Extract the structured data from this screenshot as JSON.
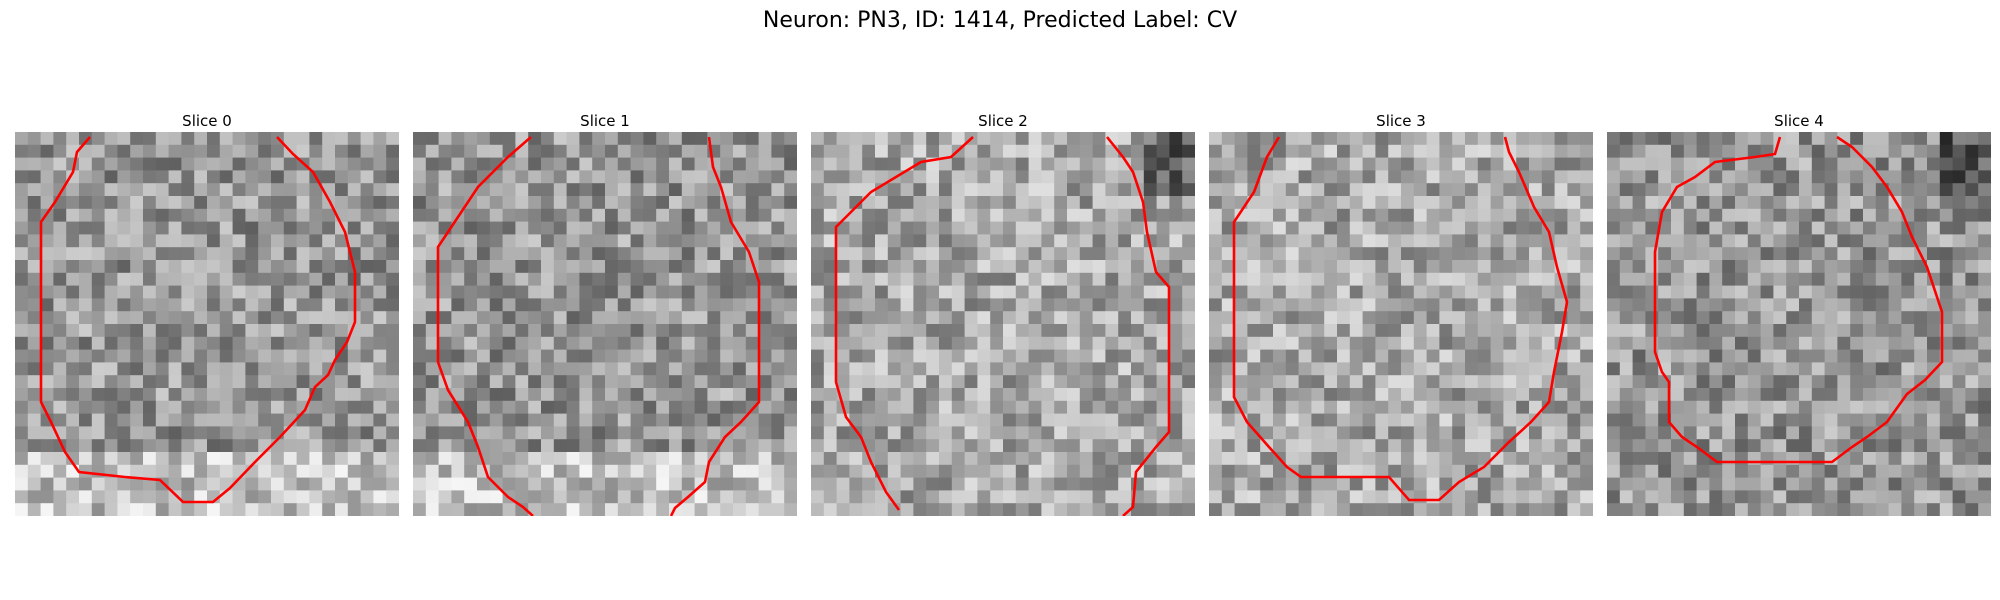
{
  "figure": {
    "title": "Neuron: PN3, ID: 1414, Predicted Label: CV",
    "contour_color": "#ff0000",
    "slices": [
      {
        "label": "Slice 0",
        "seed": 11,
        "tone": "mid"
      },
      {
        "label": "Slice 1",
        "seed": 23,
        "tone": "mid"
      },
      {
        "label": "Slice 2",
        "seed": 37,
        "tone": "light"
      },
      {
        "label": "Slice 3",
        "seed": 41,
        "tone": "light"
      },
      {
        "label": "Slice 4",
        "seed": 53,
        "tone": "mid"
      }
    ]
  }
}
